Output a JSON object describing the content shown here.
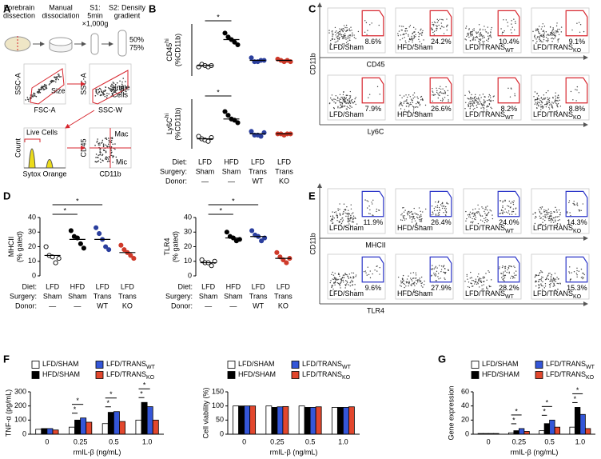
{
  "panel_labels": [
    "A",
    "B",
    "C",
    "D",
    "E",
    "F",
    "G"
  ],
  "panel_a": {
    "steps": [
      [
        "Forebrain",
        "dissection"
      ],
      [
        "Manual",
        "dissociation"
      ],
      [
        "S1:",
        "5min",
        "×1,000g"
      ],
      [
        "S2: Density",
        "gradient"
      ]
    ],
    "gradient": [
      "50%",
      "75%"
    ],
    "gates": [
      {
        "y_label": "SSC-A",
        "x_label": "FSC-A",
        "gate": [
          "Size"
        ]
      },
      {
        "y_label": "SSC-A",
        "x_label": "SSC-W",
        "gate": [
          "Single",
          "Cells"
        ]
      },
      {
        "y_label": "Count",
        "x_label": "Sytox Orange",
        "gate": [
          "Live Cells"
        ]
      },
      {
        "y_label": "CD45",
        "x_label": "CD11b",
        "gate": [
          "Mac",
          "Mic"
        ]
      }
    ]
  },
  "design": [
    {
      "label": "Diet:",
      "values": [
        "LFD",
        "HFD",
        "LFD",
        "LFD"
      ]
    },
    {
      "label": "Surgery:",
      "values": [
        "Sham",
        "Sham",
        "Trans",
        "Trans"
      ]
    },
    {
      "label": "Donor:",
      "values": [
        "—",
        "—",
        "WT",
        "KO"
      ]
    }
  ],
  "groups": [
    {
      "name": "LFD/Sham"
    },
    {
      "name": "HFD/Sham"
    },
    {
      "name": "LFD/TRANS",
      "sub": "WT"
    },
    {
      "name": "LFD/TRANS",
      "sub": "KO"
    }
  ],
  "flow": [
    {
      "x_labels": [
        "CD45",
        "Ly6C"
      ],
      "y_label": "CD11b",
      "color": "#d7262e",
      "percents": [
        [
          "8.6%",
          "24.2%",
          "10.4%",
          "9.1%"
        ],
        [
          "7.9%",
          "26.6%",
          "8.2%",
          "8.8%"
        ]
      ]
    },
    {
      "x_labels": [
        "MHCII",
        "TLR4"
      ],
      "y_label": "CD11b",
      "color": "#2b35c8",
      "percents": [
        [
          "11.9%",
          "26.4%",
          "24.0%",
          "14.3%"
        ],
        [
          "9.6%",
          "27.9%",
          "28.2%",
          "15.3%"
        ]
      ]
    }
  ],
  "chart_data": [
    {
      "type": "dot",
      "y_label": {
        "name": "CD45",
        "sup": "hi",
        "unit": "(%CD11b)"
      },
      "ylim": [
        0,
        40
      ],
      "groups": [
        {
          "color": "#000000",
          "fill": "#ffffff",
          "values": [
            7,
            9,
            8,
            7,
            8
          ],
          "mean": 8
        },
        {
          "color": "#000000",
          "fill": "#000000",
          "values": [
            33,
            30,
            28,
            26,
            24
          ],
          "mean": 28
        },
        {
          "color": "#2b3f9e",
          "fill": "#2b3f9e",
          "values": [
            14,
            11,
            11,
            12,
            12
          ],
          "mean": 12
        },
        {
          "color": "#cf3a2a",
          "fill": "#cf3a2a",
          "values": [
            13,
            12,
            11,
            12,
            11
          ],
          "mean": 12
        }
      ],
      "significance": [
        {
          "from": 0,
          "to": 1,
          "label": "*"
        }
      ]
    },
    {
      "type": "dot",
      "y_label": {
        "name": "Ly6C",
        "sup": "hi",
        "unit": "(%CD11b)"
      },
      "ylim": [
        0,
        40
      ],
      "groups": [
        {
          "color": "#000000",
          "fill": "#ffffff",
          "values": [
            10,
            8,
            7,
            6,
            9
          ],
          "mean": 8
        },
        {
          "color": "#000000",
          "fill": "#000000",
          "values": [
            30,
            27,
            24,
            23,
            21
          ],
          "mean": 24
        },
        {
          "color": "#2b3f9e",
          "fill": "#2b3f9e",
          "values": [
            14,
            11,
            11,
            10,
            13
          ],
          "mean": 12
        },
        {
          "color": "#cf3a2a",
          "fill": "#cf3a2a",
          "values": [
            12,
            12,
            11,
            12,
            12
          ],
          "mean": 12
        }
      ],
      "significance": [
        {
          "from": 0,
          "to": 1,
          "label": "*"
        }
      ]
    },
    {
      "type": "dot",
      "y_label": {
        "name": "MHCII",
        "unit": "(% gated)"
      },
      "ylim": [
        0,
        40
      ],
      "yticks": [
        0,
        10,
        20,
        30,
        40
      ],
      "groups": [
        {
          "color": "#000000",
          "fill": "#ffffff",
          "values": [
            20,
            14,
            13,
            9,
            12
          ],
          "mean": 14
        },
        {
          "color": "#000000",
          "fill": "#000000",
          "values": [
            31,
            27,
            26,
            22,
            19
          ],
          "mean": 25
        },
        {
          "color": "#2b3f9e",
          "fill": "#2b3f9e",
          "values": [
            33,
            29,
            25,
            20,
            18
          ],
          "mean": 25
        },
        {
          "color": "#cf3a2a",
          "fill": "#cf3a2a",
          "values": [
            21,
            18,
            16,
            14,
            12
          ],
          "mean": 16
        }
      ],
      "significance": [
        {
          "from": 0,
          "to": 1,
          "label": "*"
        },
        {
          "from": 0,
          "to": 2,
          "label": "*"
        }
      ]
    },
    {
      "type": "dot",
      "y_label": {
        "name": "TLR4",
        "unit": "(% gated)"
      },
      "ylim": [
        0,
        40
      ],
      "yticks": [
        0,
        10,
        20,
        30,
        40
      ],
      "groups": [
        {
          "color": "#000000",
          "fill": "#ffffff",
          "values": [
            11,
            9,
            9,
            7,
            10
          ],
          "mean": 9
        },
        {
          "color": "#000000",
          "fill": "#000000",
          "values": [
            30,
            27,
            26,
            24,
            25
          ],
          "mean": 26
        },
        {
          "color": "#2b3f9e",
          "fill": "#2b3f9e",
          "values": [
            31,
            28,
            27,
            24,
            26
          ],
          "mean": 27
        },
        {
          "color": "#cf3a2a",
          "fill": "#cf3a2a",
          "values": [
            16,
            13,
            11,
            9,
            12
          ],
          "mean": 12
        }
      ],
      "significance": [
        {
          "from": 0,
          "to": 1,
          "label": "*"
        },
        {
          "from": 0,
          "to": 2,
          "label": "*"
        }
      ]
    },
    {
      "type": "bar",
      "y_label": "TNF-α (pg/mL)",
      "x_label": "rmIL-β (ng/mL)",
      "categories": [
        "0",
        "0.25",
        "0.5",
        "1.0"
      ],
      "ylim": [
        0,
        300
      ],
      "yticks": [
        0,
        100,
        200,
        300
      ],
      "series": [
        {
          "name": "LFD/SHAM",
          "color": "#ffffff",
          "values": [
            35,
            50,
            75,
            100
          ]
        },
        {
          "name": "HFD/SHAM",
          "color": "#000000",
          "values": [
            40,
            100,
            155,
            225
          ]
        },
        {
          "name": "LFD/TRANS",
          "sub": "WT",
          "color": "#3456d8",
          "values": [
            40,
            115,
            160,
            195
          ]
        },
        {
          "name": "LFD/TRANS",
          "sub": "KO",
          "color": "#e2472d",
          "values": [
            30,
            85,
            90,
            100
          ]
        }
      ],
      "significance": [
        {
          "category": 1,
          "from": 0,
          "to": 1,
          "label": "*"
        },
        {
          "category": 1,
          "from": 0,
          "to": 2,
          "label": "*"
        },
        {
          "category": 2,
          "from": 0,
          "to": 1,
          "label": "*"
        },
        {
          "category": 2,
          "from": 0,
          "to": 2,
          "label": "*"
        },
        {
          "category": 3,
          "from": 0,
          "to": 1,
          "label": "*"
        },
        {
          "category": 3,
          "from": 0,
          "to": 2,
          "label": "*"
        }
      ]
    },
    {
      "type": "bar",
      "y_label": "Cell viability (%)",
      "x_label": "rmIL-β (ng/mL)",
      "categories": [
        "0",
        "0.25",
        "0.5",
        "1.0"
      ],
      "ylim": [
        0,
        150
      ],
      "yticks": [
        0,
        50,
        100,
        150
      ],
      "series": [
        {
          "name": "LFD/SHAM",
          "color": "#ffffff",
          "values": [
            100,
            100,
            100,
            95
          ]
        },
        {
          "name": "HFD/SHAM",
          "color": "#000000",
          "values": [
            100,
            95,
            95,
            95
          ]
        },
        {
          "name": "LFD/TRANS",
          "sub": "WT",
          "color": "#3456d8",
          "values": [
            100,
            97,
            95,
            95
          ]
        },
        {
          "name": "LFD/TRANS",
          "sub": "KO",
          "color": "#e2472d",
          "values": [
            100,
            98,
            97,
            97
          ]
        }
      ],
      "significance": []
    },
    {
      "type": "bar",
      "y_label": "Gene expression",
      "x_label": "rmIL-β (ng/mL)",
      "categories": [
        "0",
        "0.25",
        "0.5",
        "1.0"
      ],
      "ylim": [
        0,
        60
      ],
      "yticks": [
        0,
        20,
        40,
        60
      ],
      "series": [
        {
          "name": "LFD/SHAM",
          "color": "#ffffff",
          "values": [
            1,
            2,
            5,
            10
          ]
        },
        {
          "name": "HFD/SHAM",
          "color": "#000000",
          "values": [
            1,
            5,
            15,
            38
          ]
        },
        {
          "name": "LFD/TRANS",
          "sub": "WT",
          "color": "#3456d8",
          "values": [
            1,
            8,
            20,
            28
          ]
        },
        {
          "name": "LFD/TRANS",
          "sub": "KO",
          "color": "#e2472d",
          "values": [
            1,
            4,
            10,
            8
          ]
        }
      ],
      "significance": [
        {
          "category": 1,
          "from": 0,
          "to": 1,
          "label": "*"
        },
        {
          "category": 1,
          "from": 0,
          "to": 2,
          "label": "*"
        },
        {
          "category": 2,
          "from": 0,
          "to": 1,
          "label": "*"
        },
        {
          "category": 2,
          "from": 0,
          "to": 2,
          "label": "*"
        },
        {
          "category": 3,
          "from": 0,
          "to": 1,
          "label": "*"
        },
        {
          "category": 3,
          "from": 0,
          "to": 2,
          "label": "*"
        }
      ]
    }
  ]
}
